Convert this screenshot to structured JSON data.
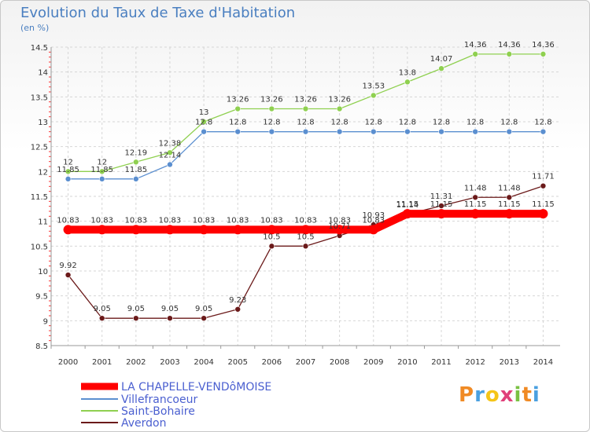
{
  "title": "Evolution du Taux de Taxe d'Habitation",
  "unit": "(en %)",
  "logo": "Proxiti",
  "chart_data": {
    "type": "line",
    "x": [
      2000,
      2001,
      2002,
      2003,
      2004,
      2005,
      2006,
      2007,
      2008,
      2009,
      2010,
      2011,
      2012,
      2013,
      2014
    ],
    "ylim": [
      8.5,
      14.5
    ],
    "yticks": [
      "8.5",
      "9",
      "9.5",
      "10",
      "10.5",
      "11",
      "11.5",
      "12",
      "12.5",
      "13",
      "13.5",
      "14",
      "14.5"
    ],
    "grid": true,
    "legend_position": "bottom-left",
    "series": [
      {
        "name": "LA CHAPELLE-VENDôMOISE",
        "color": "#ff0000",
        "values": [
          10.83,
          10.83,
          10.83,
          10.83,
          10.83,
          10.83,
          10.83,
          10.83,
          10.83,
          10.83,
          11.15,
          11.15,
          11.15,
          11.15,
          11.15
        ]
      },
      {
        "name": "Villefrancoeur",
        "color": "#5b8fd0",
        "values": [
          11.85,
          11.85,
          11.85,
          12.14,
          12.8,
          12.8,
          12.8,
          12.8,
          12.8,
          12.8,
          12.8,
          12.8,
          12.8,
          12.8,
          12.8
        ]
      },
      {
        "name": "Saint-Bohaire",
        "color": "#8fd050",
        "values": [
          12,
          12,
          12.19,
          12.38,
          13,
          13.26,
          13.26,
          13.26,
          13.26,
          13.53,
          13.8,
          14.07,
          14.36,
          14.36,
          14.36
        ]
      },
      {
        "name": "Averdon",
        "color": "#6b1a1a",
        "values": [
          9.92,
          9.05,
          9.05,
          9.05,
          9.05,
          9.23,
          10.5,
          10.5,
          10.71,
          10.93,
          11.14,
          11.31,
          11.48,
          11.48,
          11.71
        ]
      }
    ]
  }
}
